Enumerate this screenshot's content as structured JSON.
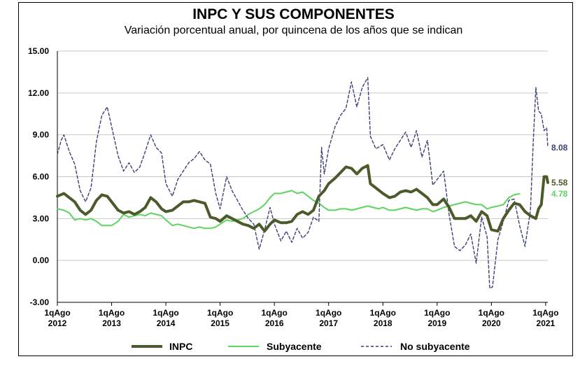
{
  "chart_data": {
    "type": "line",
    "title": "INPC Y SUS COMPONENTES",
    "subtitle": "Variación porcentual anual, por quincena de los años que se indican",
    "ylim": [
      -3,
      15
    ],
    "yticks": [
      "15.00",
      "12.00",
      "9.00",
      "6.00",
      "3.00",
      "0.00",
      "-3.00"
    ],
    "ytick_values": [
      15,
      12,
      9,
      6,
      3,
      0,
      -3
    ],
    "xlim": [
      2012.58,
      2021.62
    ],
    "xticks": [
      {
        "value": 2012.58,
        "line1": "1qAgo",
        "line2": "2012"
      },
      {
        "value": 2013.58,
        "line1": "1qAgo",
        "line2": "2013"
      },
      {
        "value": 2014.58,
        "line1": "1qAgo",
        "line2": "2014"
      },
      {
        "value": 2015.58,
        "line1": "1qAgo",
        "line2": "2015"
      },
      {
        "value": 2016.58,
        "line1": "1qAgo",
        "line2": "2016"
      },
      {
        "value": 2017.58,
        "line1": "1qAgo",
        "line2": "2017"
      },
      {
        "value": 2018.58,
        "line1": "1qAgo",
        "line2": "2018"
      },
      {
        "value": 2019.58,
        "line1": "1qAgo",
        "line2": "2019"
      },
      {
        "value": 2020.58,
        "line1": "1qAgo",
        "line2": "2020"
      },
      {
        "value": 2021.58,
        "line1": "1qAgo",
        "line2": "2021"
      }
    ],
    "grid": true,
    "legend_position": "bottom",
    "series": [
      {
        "name": "INPC",
        "color": "#4a5a2a",
        "style": "solid-thick",
        "end_label": "5.58",
        "points": [
          [
            2012.58,
            4.6
          ],
          [
            2012.7,
            4.8
          ],
          [
            2012.8,
            4.5
          ],
          [
            2012.9,
            4.2
          ],
          [
            2013.0,
            3.6
          ],
          [
            2013.1,
            3.3
          ],
          [
            2013.2,
            3.6
          ],
          [
            2013.3,
            4.3
          ],
          [
            2013.4,
            4.7
          ],
          [
            2013.5,
            4.6
          ],
          [
            2013.58,
            4.2
          ],
          [
            2013.7,
            3.6
          ],
          [
            2013.8,
            3.4
          ],
          [
            2013.9,
            3.5
          ],
          [
            2014.0,
            3.3
          ],
          [
            2014.1,
            3.5
          ],
          [
            2014.2,
            3.8
          ],
          [
            2014.3,
            4.5
          ],
          [
            2014.4,
            4.2
          ],
          [
            2014.5,
            3.7
          ],
          [
            2014.58,
            3.5
          ],
          [
            2014.7,
            3.6
          ],
          [
            2014.8,
            3.9
          ],
          [
            2014.9,
            4.2
          ],
          [
            2015.0,
            4.2
          ],
          [
            2015.1,
            4.3
          ],
          [
            2015.2,
            4.2
          ],
          [
            2015.3,
            4.1
          ],
          [
            2015.4,
            3.1
          ],
          [
            2015.5,
            3.0
          ],
          [
            2015.58,
            2.8
          ],
          [
            2015.7,
            3.2
          ],
          [
            2015.8,
            3.0
          ],
          [
            2015.9,
            2.8
          ],
          [
            2016.0,
            2.6
          ],
          [
            2016.1,
            2.5
          ],
          [
            2016.2,
            2.3
          ],
          [
            2016.3,
            2.6
          ],
          [
            2016.4,
            2.1
          ],
          [
            2016.5,
            2.6
          ],
          [
            2016.58,
            2.9
          ],
          [
            2016.7,
            2.7
          ],
          [
            2016.8,
            2.7
          ],
          [
            2016.9,
            2.8
          ],
          [
            2017.0,
            3.3
          ],
          [
            2017.1,
            3.5
          ],
          [
            2017.2,
            3.3
          ],
          [
            2017.3,
            3.6
          ],
          [
            2017.4,
            4.6
          ],
          [
            2017.5,
            5.0
          ],
          [
            2017.58,
            5.5
          ],
          [
            2017.7,
            5.9
          ],
          [
            2017.8,
            6.3
          ],
          [
            2017.9,
            6.7
          ],
          [
            2018.0,
            6.6
          ],
          [
            2018.1,
            6.2
          ],
          [
            2018.2,
            6.6
          ],
          [
            2018.3,
            6.8
          ],
          [
            2018.35,
            5.5
          ],
          [
            2018.45,
            5.2
          ],
          [
            2018.58,
            4.8
          ],
          [
            2018.7,
            4.5
          ],
          [
            2018.8,
            4.6
          ],
          [
            2018.9,
            4.9
          ],
          [
            2019.0,
            5.0
          ],
          [
            2019.1,
            4.9
          ],
          [
            2019.2,
            5.1
          ],
          [
            2019.3,
            4.8
          ],
          [
            2019.4,
            4.5
          ],
          [
            2019.5,
            4.0
          ],
          [
            2019.58,
            4.0
          ],
          [
            2019.7,
            4.4
          ],
          [
            2019.8,
            3.8
          ],
          [
            2019.9,
            3.0
          ],
          [
            2020.0,
            3.0
          ],
          [
            2020.1,
            3.0
          ],
          [
            2020.2,
            3.2
          ],
          [
            2020.3,
            2.8
          ],
          [
            2020.4,
            3.5
          ],
          [
            2020.5,
            3.2
          ],
          [
            2020.58,
            2.2
          ],
          [
            2020.7,
            2.1
          ],
          [
            2020.8,
            3.0
          ],
          [
            2020.9,
            3.6
          ],
          [
            2021.0,
            4.1
          ],
          [
            2021.1,
            4.0
          ],
          [
            2021.2,
            3.5
          ],
          [
            2021.3,
            3.2
          ],
          [
            2021.4,
            3.0
          ],
          [
            2021.45,
            3.7
          ],
          [
            2021.5,
            4.0
          ],
          [
            2021.55,
            6.0
          ],
          [
            2021.6,
            6.0
          ],
          [
            2021.62,
            5.58
          ]
        ]
      },
      {
        "name": "Subyacente",
        "color": "#5fd35f",
        "style": "solid-thin",
        "end_label": "4.78",
        "points": [
          [
            2012.58,
            3.7
          ],
          [
            2012.7,
            3.6
          ],
          [
            2012.8,
            3.4
          ],
          [
            2012.9,
            2.9
          ],
          [
            2013.0,
            3.0
          ],
          [
            2013.1,
            2.9
          ],
          [
            2013.2,
            3.0
          ],
          [
            2013.3,
            2.8
          ],
          [
            2013.4,
            2.5
          ],
          [
            2013.5,
            2.5
          ],
          [
            2013.58,
            2.5
          ],
          [
            2013.7,
            2.8
          ],
          [
            2013.8,
            3.3
          ],
          [
            2013.9,
            3.1
          ],
          [
            2014.0,
            3.2
          ],
          [
            2014.1,
            3.3
          ],
          [
            2014.2,
            3.2
          ],
          [
            2014.3,
            3.4
          ],
          [
            2014.4,
            3.3
          ],
          [
            2014.5,
            3.2
          ],
          [
            2014.58,
            2.9
          ],
          [
            2014.7,
            2.5
          ],
          [
            2014.8,
            2.6
          ],
          [
            2014.9,
            2.5
          ],
          [
            2015.0,
            2.4
          ],
          [
            2015.1,
            2.3
          ],
          [
            2015.2,
            2.4
          ],
          [
            2015.3,
            2.3
          ],
          [
            2015.4,
            2.3
          ],
          [
            2015.5,
            2.4
          ],
          [
            2015.58,
            2.6
          ],
          [
            2015.7,
            2.9
          ],
          [
            2015.8,
            2.8
          ],
          [
            2015.9,
            2.9
          ],
          [
            2016.0,
            3.0
          ],
          [
            2016.1,
            3.3
          ],
          [
            2016.2,
            3.5
          ],
          [
            2016.3,
            3.7
          ],
          [
            2016.4,
            4.0
          ],
          [
            2016.5,
            4.5
          ],
          [
            2016.58,
            4.8
          ],
          [
            2016.7,
            4.8
          ],
          [
            2016.8,
            4.9
          ],
          [
            2016.9,
            5.0
          ],
          [
            2017.0,
            4.8
          ],
          [
            2017.1,
            4.9
          ],
          [
            2017.2,
            4.6
          ],
          [
            2017.3,
            4.3
          ],
          [
            2017.4,
            4.1
          ],
          [
            2017.5,
            3.8
          ],
          [
            2017.58,
            3.6
          ],
          [
            2017.7,
            3.6
          ],
          [
            2017.8,
            3.7
          ],
          [
            2017.9,
            3.7
          ],
          [
            2018.0,
            3.6
          ],
          [
            2018.1,
            3.7
          ],
          [
            2018.2,
            3.8
          ],
          [
            2018.3,
            3.9
          ],
          [
            2018.4,
            3.8
          ],
          [
            2018.5,
            3.7
          ],
          [
            2018.58,
            3.8
          ],
          [
            2018.7,
            3.6
          ],
          [
            2018.8,
            3.6
          ],
          [
            2018.9,
            3.7
          ],
          [
            2019.0,
            3.8
          ],
          [
            2019.1,
            3.7
          ],
          [
            2019.2,
            3.6
          ],
          [
            2019.3,
            3.7
          ],
          [
            2019.4,
            3.7
          ],
          [
            2019.5,
            3.5
          ],
          [
            2019.58,
            3.6
          ],
          [
            2019.7,
            3.8
          ],
          [
            2019.8,
            3.9
          ],
          [
            2019.9,
            4.0
          ],
          [
            2020.0,
            4.1
          ],
          [
            2020.1,
            4.2
          ],
          [
            2020.2,
            4.1
          ],
          [
            2020.3,
            4.0
          ],
          [
            2020.4,
            4.0
          ],
          [
            2020.5,
            3.7
          ],
          [
            2020.58,
            3.8
          ],
          [
            2020.7,
            3.9
          ],
          [
            2020.8,
            4.0
          ],
          [
            2020.9,
            4.5
          ],
          [
            2021.0,
            4.7
          ],
          [
            2021.1,
            4.78
          ]
        ]
      },
      {
        "name": "No subyacente",
        "color": "#3a3f7a",
        "style": "dashed",
        "end_label": "8.08",
        "points": [
          [
            2012.58,
            7.6
          ],
          [
            2012.65,
            8.6
          ],
          [
            2012.7,
            9.0
          ],
          [
            2012.8,
            7.8
          ],
          [
            2012.9,
            6.9
          ],
          [
            2013.0,
            5.0
          ],
          [
            2013.1,
            4.2
          ],
          [
            2013.2,
            5.2
          ],
          [
            2013.3,
            8.5
          ],
          [
            2013.4,
            10.4
          ],
          [
            2013.5,
            11.0
          ],
          [
            2013.58,
            9.6
          ],
          [
            2013.7,
            7.5
          ],
          [
            2013.8,
            6.4
          ],
          [
            2013.9,
            7.0
          ],
          [
            2014.0,
            6.3
          ],
          [
            2014.1,
            6.7
          ],
          [
            2014.2,
            7.8
          ],
          [
            2014.3,
            9.0
          ],
          [
            2014.4,
            8.1
          ],
          [
            2014.5,
            7.7
          ],
          [
            2014.58,
            5.5
          ],
          [
            2014.7,
            4.6
          ],
          [
            2014.8,
            5.8
          ],
          [
            2014.9,
            6.4
          ],
          [
            2015.0,
            7.0
          ],
          [
            2015.1,
            7.3
          ],
          [
            2015.2,
            7.8
          ],
          [
            2015.3,
            7.2
          ],
          [
            2015.4,
            6.9
          ],
          [
            2015.5,
            4.8
          ],
          [
            2015.58,
            3.7
          ],
          [
            2015.7,
            6.0
          ],
          [
            2015.8,
            5.0
          ],
          [
            2015.9,
            4.3
          ],
          [
            2016.0,
            3.6
          ],
          [
            2016.1,
            3.0
          ],
          [
            2016.2,
            2.6
          ],
          [
            2016.3,
            0.8
          ],
          [
            2016.4,
            2.2
          ],
          [
            2016.5,
            3.8
          ],
          [
            2016.58,
            2.6
          ],
          [
            2016.7,
            1.4
          ],
          [
            2016.8,
            2.1
          ],
          [
            2016.9,
            1.3
          ],
          [
            2017.0,
            2.3
          ],
          [
            2017.1,
            1.6
          ],
          [
            2017.2,
            2.0
          ],
          [
            2017.3,
            3.1
          ],
          [
            2017.4,
            2.8
          ],
          [
            2017.45,
            8.1
          ],
          [
            2017.5,
            6.2
          ],
          [
            2017.58,
            8.0
          ],
          [
            2017.7,
            9.6
          ],
          [
            2017.8,
            10.4
          ],
          [
            2017.9,
            10.9
          ],
          [
            2018.0,
            12.8
          ],
          [
            2018.1,
            11.0
          ],
          [
            2018.2,
            12.4
          ],
          [
            2018.3,
            13.1
          ],
          [
            2018.35,
            8.9
          ],
          [
            2018.45,
            8.0
          ],
          [
            2018.58,
            8.3
          ],
          [
            2018.7,
            7.2
          ],
          [
            2018.8,
            8.0
          ],
          [
            2018.9,
            8.6
          ],
          [
            2019.0,
            9.2
          ],
          [
            2019.1,
            8.1
          ],
          [
            2019.2,
            9.3
          ],
          [
            2019.3,
            7.4
          ],
          [
            2019.4,
            8.6
          ],
          [
            2019.5,
            5.4
          ],
          [
            2019.58,
            5.8
          ],
          [
            2019.7,
            6.4
          ],
          [
            2019.8,
            3.3
          ],
          [
            2019.9,
            1.0
          ],
          [
            2020.0,
            0.7
          ],
          [
            2020.1,
            1.1
          ],
          [
            2020.2,
            1.9
          ],
          [
            2020.3,
            -0.2
          ],
          [
            2020.4,
            3.1
          ],
          [
            2020.5,
            1.7
          ],
          [
            2020.55,
            -2.0
          ],
          [
            2020.6,
            -1.9
          ],
          [
            2020.7,
            1.5
          ],
          [
            2020.8,
            2.8
          ],
          [
            2020.9,
            4.3
          ],
          [
            2021.0,
            4.4
          ],
          [
            2021.1,
            2.5
          ],
          [
            2021.2,
            1.0
          ],
          [
            2021.3,
            3.6
          ],
          [
            2021.35,
            8.4
          ],
          [
            2021.4,
            12.4
          ],
          [
            2021.45,
            10.7
          ],
          [
            2021.5,
            10.5
          ],
          [
            2021.55,
            9.3
          ],
          [
            2021.6,
            9.5
          ],
          [
            2021.62,
            8.08
          ]
        ]
      }
    ]
  }
}
